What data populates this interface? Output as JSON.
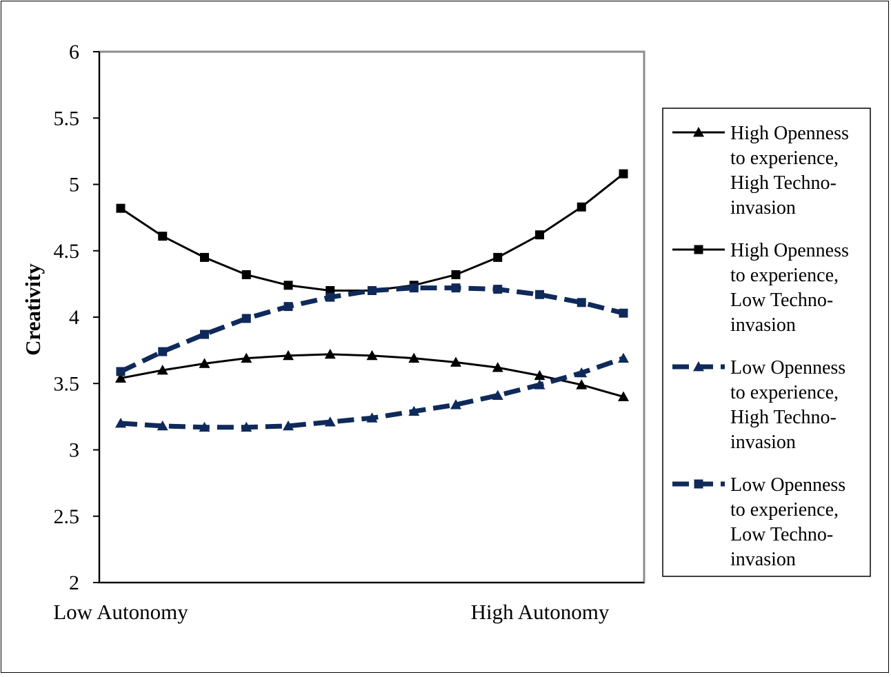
{
  "chart_data": {
    "type": "line",
    "xlabel": "",
    "ylabel": "Creativity",
    "ylim": [
      2,
      6
    ],
    "y_ticks": [
      "2",
      "2.5",
      "3",
      "3.5",
      "4",
      "4.5",
      "5",
      "5.5",
      "6"
    ],
    "x_tick_labels": [
      "Low Autonomy",
      "High Autonomy"
    ],
    "grid": false,
    "legend_position": "right",
    "x": [
      1,
      2,
      3,
      4,
      5,
      6,
      7,
      8,
      9,
      10,
      11,
      12,
      13
    ],
    "series": [
      {
        "name": "High Openness to experience, High Techno-invasion",
        "legend_lines": [
          "High Openness",
          "to experience,",
          "High Techno-",
          "invasion"
        ],
        "marker": "triangle",
        "line_style": "solid",
        "color": "#000000",
        "values": [
          3.54,
          3.6,
          3.65,
          3.69,
          3.71,
          3.72,
          3.71,
          3.69,
          3.66,
          3.62,
          3.56,
          3.49,
          3.4
        ]
      },
      {
        "name": "High Openness to experience, Low Techno-invasion",
        "legend_lines": [
          "High Openness",
          "to experience,",
          "Low Techno-",
          "invasion"
        ],
        "marker": "square",
        "line_style": "solid",
        "color": "#000000",
        "values": [
          4.82,
          4.61,
          4.45,
          4.32,
          4.24,
          4.2,
          4.2,
          4.24,
          4.32,
          4.45,
          4.62,
          4.83,
          5.08
        ]
      },
      {
        "name": "Low Openness to experience, High Techno-invasion",
        "legend_lines": [
          "Low Openness",
          "to experience,",
          "High Techno-",
          "invasion"
        ],
        "marker": "triangle",
        "line_style": "dashed",
        "color": "#0f2a5a",
        "values": [
          3.2,
          3.18,
          3.17,
          3.17,
          3.18,
          3.21,
          3.24,
          3.29,
          3.34,
          3.41,
          3.49,
          3.58,
          3.69
        ]
      },
      {
        "name": "Low Openness to experience, Low Techno-invasion",
        "legend_lines": [
          "Low Openness",
          "to experience,",
          "Low Techno-",
          "invasion"
        ],
        "marker": "square",
        "line_style": "dashed",
        "color": "#0f2a5a",
        "values": [
          3.59,
          3.74,
          3.87,
          3.99,
          4.08,
          4.15,
          4.2,
          4.22,
          4.22,
          4.21,
          4.17,
          4.11,
          4.03
        ]
      }
    ]
  }
}
